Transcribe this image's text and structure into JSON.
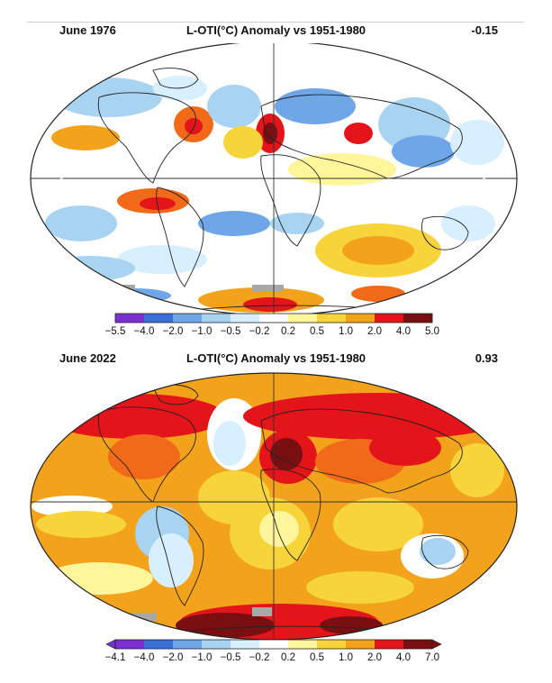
{
  "colors": {
    "purple": "#7b2fd1",
    "deep_blue": "#3a6fd8",
    "blue": "#6fa6e8",
    "light_blue": "#a8d4f2",
    "pale_blue": "#d8efff",
    "white": "#ffffff",
    "pale_yellow": "#fff59a",
    "yellow": "#f7d43a",
    "orange": "#f2a31b",
    "orange_red": "#f06a1a",
    "red": "#e3141a",
    "dark_red": "#7a0f12",
    "no_data_gray": "#a8a8a8",
    "coastline": "#222222",
    "grid_line": "#333333"
  },
  "panels": [
    {
      "id": "june-1976",
      "date_label": "June 1976",
      "title": "L-OTI(°C) Anomaly vs 1951-1980",
      "global_mean": "-0.15",
      "projection": "Robinson",
      "colorbar": {
        "ticks": [
          "−5.5",
          "−4.0",
          "−2.0",
          "−1.0",
          "−0.5",
          "−0.2",
          "0.2",
          "0.5",
          "1.0",
          "2.0",
          "4.0",
          "5.0"
        ],
        "colors": [
          "purple",
          "deep_blue",
          "blue",
          "light_blue",
          "pale_blue",
          "white",
          "pale_yellow",
          "yellow",
          "orange",
          "red",
          "dark_red"
        ]
      },
      "dominant_fill": "white"
    },
    {
      "id": "june-2022",
      "date_label": "June 2022",
      "title": "L-OTI(°C) Anomaly vs 1951-1980",
      "global_mean": "0.93",
      "projection": "Robinson",
      "colorbar": {
        "ticks": [
          "−4.1",
          "−4.0",
          "−2.0",
          "−1.0",
          "−0.5",
          "−0.2",
          "0.2",
          "0.5",
          "1.0",
          "2.0",
          "4.0",
          "7.0"
        ],
        "colors": [
          "purple",
          "deep_blue",
          "blue",
          "light_blue",
          "pale_blue",
          "white",
          "pale_yellow",
          "yellow",
          "orange",
          "red",
          "dark_red"
        ],
        "extend_arrows": true
      },
      "dominant_fill": "orange"
    }
  ],
  "icons": {
    "prev": "chevron-left-icon",
    "next": "chevron-right-icon"
  }
}
